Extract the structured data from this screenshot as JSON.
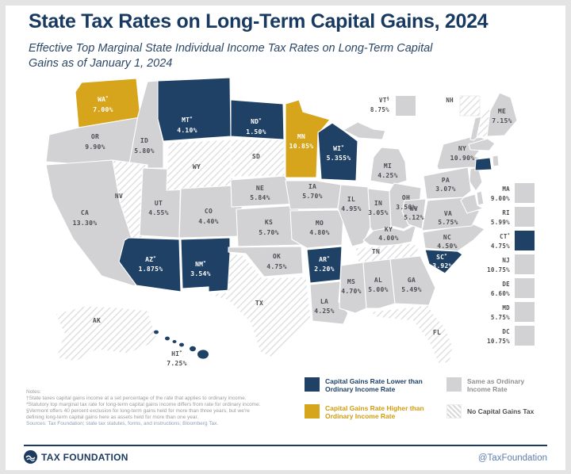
{
  "header": {
    "title": "State Tax Rates on Long-Term Capital Gains, 2024",
    "subtitle_line1": "Effective Top Marginal State Individual Income Tax Rates on Long-Term Capital",
    "subtitle_line2": "Gains as of January 1, 2024"
  },
  "colors": {
    "navy": "#1f4166",
    "gold": "#d6a51c",
    "gray": "#d2d2d4",
    "hatch_line": "#d9d9db",
    "label": "#4d4d52",
    "label_on_dark": "#ffffff"
  },
  "map_data": {
    "type": "choropleth_map",
    "region": "United States",
    "unit": "percent",
    "category_meanings": {
      "lower": "Capital Gains Rate Lower than Ordinary Income Rate",
      "higher": "Capital Gains Rate Higher than Ordinary Income Rate",
      "same": "Same as Ordinary Income Rate",
      "none": "No Capital Gains Tax"
    },
    "states": [
      {
        "code": "WA",
        "suffix": "*",
        "value": "7.00%",
        "category": "higher"
      },
      {
        "code": "OR",
        "suffix": "",
        "value": "9.90%",
        "category": "same"
      },
      {
        "code": "CA",
        "suffix": "",
        "value": "13.30%",
        "category": "same"
      },
      {
        "code": "AK",
        "suffix": "",
        "value": "",
        "category": "none"
      },
      {
        "code": "HI",
        "suffix": "*",
        "value": "7.25%",
        "category": "lower"
      },
      {
        "code": "ID",
        "suffix": "",
        "value": "5.80%",
        "category": "same"
      },
      {
        "code": "NV",
        "suffix": "",
        "value": "",
        "category": "none"
      },
      {
        "code": "UT",
        "suffix": "",
        "value": "4.55%",
        "category": "same"
      },
      {
        "code": "AZ",
        "suffix": "*",
        "value": "1.875%",
        "category": "lower"
      },
      {
        "code": "MT",
        "suffix": "*",
        "value": "4.10%",
        "category": "lower"
      },
      {
        "code": "WY",
        "suffix": "",
        "value": "",
        "category": "none"
      },
      {
        "code": "CO",
        "suffix": "",
        "value": "4.40%",
        "category": "same"
      },
      {
        "code": "NM",
        "suffix": "*",
        "value": "3.54%",
        "category": "lower"
      },
      {
        "code": "ND",
        "suffix": "*",
        "value": "1.50%",
        "category": "lower"
      },
      {
        "code": "SD",
        "suffix": "",
        "value": "",
        "category": "none"
      },
      {
        "code": "NE",
        "suffix": "",
        "value": "5.84%",
        "category": "same"
      },
      {
        "code": "KS",
        "suffix": "",
        "value": "5.70%",
        "category": "same"
      },
      {
        "code": "OK",
        "suffix": "",
        "value": "4.75%",
        "category": "same"
      },
      {
        "code": "TX",
        "suffix": "",
        "value": "",
        "category": "none"
      },
      {
        "code": "MN",
        "suffix": "",
        "value": "10.85%",
        "category": "higher"
      },
      {
        "code": "IA",
        "suffix": "",
        "value": "5.70%",
        "category": "same"
      },
      {
        "code": "MO",
        "suffix": "",
        "value": "4.80%",
        "category": "same"
      },
      {
        "code": "AR",
        "suffix": "*",
        "value": "2.20%",
        "category": "lower"
      },
      {
        "code": "LA",
        "suffix": "",
        "value": "4.25%",
        "category": "same"
      },
      {
        "code": "WI",
        "suffix": "*",
        "value": "5.355%",
        "category": "lower"
      },
      {
        "code": "IL",
        "suffix": "",
        "value": "4.95%",
        "category": "same"
      },
      {
        "code": "MS",
        "suffix": "",
        "value": "4.70%",
        "category": "same"
      },
      {
        "code": "MI",
        "suffix": "",
        "value": "4.25%",
        "category": "same"
      },
      {
        "code": "IN",
        "suffix": "",
        "value": "3.05%",
        "category": "same"
      },
      {
        "code": "OH",
        "suffix": "",
        "value": "3.50%",
        "category": "same"
      },
      {
        "code": "KY",
        "suffix": "",
        "value": "4.00%",
        "category": "same"
      },
      {
        "code": "TN",
        "suffix": "",
        "value": "",
        "category": "none"
      },
      {
        "code": "AL",
        "suffix": "",
        "value": "5.00%",
        "category": "same"
      },
      {
        "code": "GA",
        "suffix": "",
        "value": "5.49%",
        "category": "same"
      },
      {
        "code": "FL",
        "suffix": "",
        "value": "",
        "category": "none"
      },
      {
        "code": "SC",
        "suffix": "*",
        "value": "3.92%",
        "category": "lower"
      },
      {
        "code": "NC",
        "suffix": "",
        "value": "4.50%",
        "category": "same"
      },
      {
        "code": "VA",
        "suffix": "",
        "value": "5.75%",
        "category": "same"
      },
      {
        "code": "WV",
        "suffix": "",
        "value": "5.12%",
        "category": "same"
      },
      {
        "code": "PA",
        "suffix": "",
        "value": "3.07%",
        "category": "same"
      },
      {
        "code": "NY",
        "suffix": "",
        "value": "10.90%",
        "category": "same"
      },
      {
        "code": "NJ",
        "suffix": "",
        "value": "10.75%",
        "category": "same"
      },
      {
        "code": "DE",
        "suffix": "",
        "value": "6.60%",
        "category": "same"
      },
      {
        "code": "MD",
        "suffix": "",
        "value": "5.75%",
        "category": "same"
      },
      {
        "code": "DC",
        "suffix": "",
        "value": "10.75%",
        "category": "same"
      },
      {
        "code": "CT",
        "suffix": "*",
        "value": "4.75%",
        "category": "lower"
      },
      {
        "code": "RI",
        "suffix": "",
        "value": "5.99%",
        "category": "same"
      },
      {
        "code": "MA",
        "suffix": "",
        "value": "9.00%",
        "category": "same"
      },
      {
        "code": "VT",
        "suffix": "§",
        "value": "8.75%",
        "category": "same"
      },
      {
        "code": "NH",
        "suffix": "",
        "value": "",
        "category": "none"
      },
      {
        "code": "ME",
        "suffix": "",
        "value": "7.15%",
        "category": "same"
      }
    ]
  },
  "legend": {
    "items": [
      {
        "id": "lower",
        "line1": "Capital Gains Rate Lower than",
        "line2": "Ordinary Income Rate"
      },
      {
        "id": "higher",
        "line1": "Capital Gains Rate Higher than",
        "line2": "Ordinary Income Rate"
      },
      {
        "id": "same",
        "line1": "Same as Ordinary",
        "line2": "Income Rate"
      },
      {
        "id": "none",
        "line1": "No Capital Gains Tax",
        "line2": ""
      }
    ]
  },
  "notes": {
    "lines": [
      "Notes:",
      "†State taxes capital gains income at a set percentage of the rate that applies to ordinary income.",
      "*Statutory top marginal tax rate for long-term capital gains income differs from rate for ordinary income.",
      "§Vermont offers 40 percent exclusion for long-term gains held for more than three years, but we're",
      "defining long-term capital gains here as assets held for more than one year."
    ],
    "sources": "Sources: Tax Foundation; state tax statutes, forms, and instructions; Bloomberg Tax."
  },
  "footer": {
    "brand": "TAX FOUNDATION",
    "handle": "@TaxFoundation"
  }
}
